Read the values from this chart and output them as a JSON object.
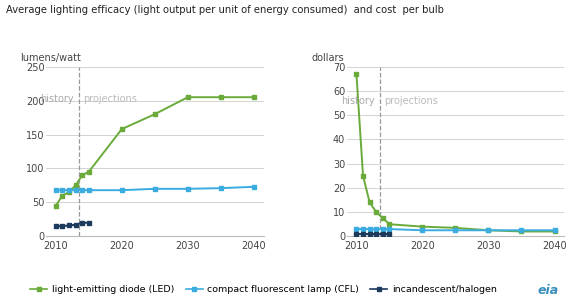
{
  "title": "Average lighting efficacy (light output per unit of energy consumed)  and cost  per bulb",
  "left_ylabel": "lumens/watt",
  "right_ylabel": "dollars",
  "history_label": "history",
  "projections_label": "projections",
  "divider_year": 2013.5,
  "led_color": "#6aaa3a",
  "cfl_color": "#3aace0",
  "inc_color": "#1b3a5c",
  "led_label": "light-emitting diode (LED)",
  "cfl_label": "compact fluorescent lamp (CFL)",
  "inc_label": "incandescent/halogen",
  "left_ylim": [
    0,
    250
  ],
  "left_yticks": [
    0,
    50,
    100,
    150,
    200,
    250
  ],
  "right_ylim": [
    0,
    70
  ],
  "right_yticks": [
    0,
    10,
    20,
    30,
    40,
    50,
    60,
    70
  ],
  "xlim": [
    2008.5,
    2041.5
  ],
  "xticks": [
    2010,
    2020,
    2030,
    2040
  ],
  "xtick_labels": [
    "2010",
    "2020",
    "2030",
    "2040"
  ],
  "left_led_x": [
    2010,
    2011,
    2012,
    2013,
    2014,
    2015,
    2020,
    2025,
    2030,
    2035,
    2040
  ],
  "left_led_y": [
    45,
    60,
    65,
    75,
    90,
    95,
    158,
    180,
    205,
    205,
    205
  ],
  "left_cfl_x": [
    2010,
    2011,
    2012,
    2013,
    2014,
    2015,
    2020,
    2025,
    2030,
    2035,
    2040
  ],
  "left_cfl_y": [
    68,
    68,
    68,
    68,
    68,
    68,
    68,
    70,
    70,
    71,
    73
  ],
  "left_inc_x": [
    2010,
    2011,
    2012,
    2013,
    2014,
    2015
  ],
  "left_inc_y": [
    15,
    15,
    16,
    17,
    20,
    20
  ],
  "right_led_x": [
    2010,
    2011,
    2012,
    2013,
    2014,
    2015,
    2020,
    2025,
    2030,
    2035,
    2040
  ],
  "right_led_y": [
    67,
    25,
    14,
    10,
    7.5,
    5,
    4,
    3.5,
    2.5,
    2,
    2
  ],
  "right_cfl_x": [
    2010,
    2011,
    2012,
    2013,
    2014,
    2015,
    2020,
    2025,
    2030,
    2035,
    2040
  ],
  "right_cfl_y": [
    3,
    3,
    3,
    3,
    3,
    3,
    2.5,
    2.5,
    2.5,
    2.5,
    2.5
  ],
  "right_inc_x": [
    2010,
    2011,
    2012,
    2013,
    2014,
    2015
  ],
  "right_inc_y": [
    1,
    1,
    1,
    1,
    1,
    1
  ],
  "background_color": "#ffffff",
  "grid_color": "#cccccc",
  "text_history_color": "#aaaaaa",
  "text_proj_color": "#bbbbbb"
}
